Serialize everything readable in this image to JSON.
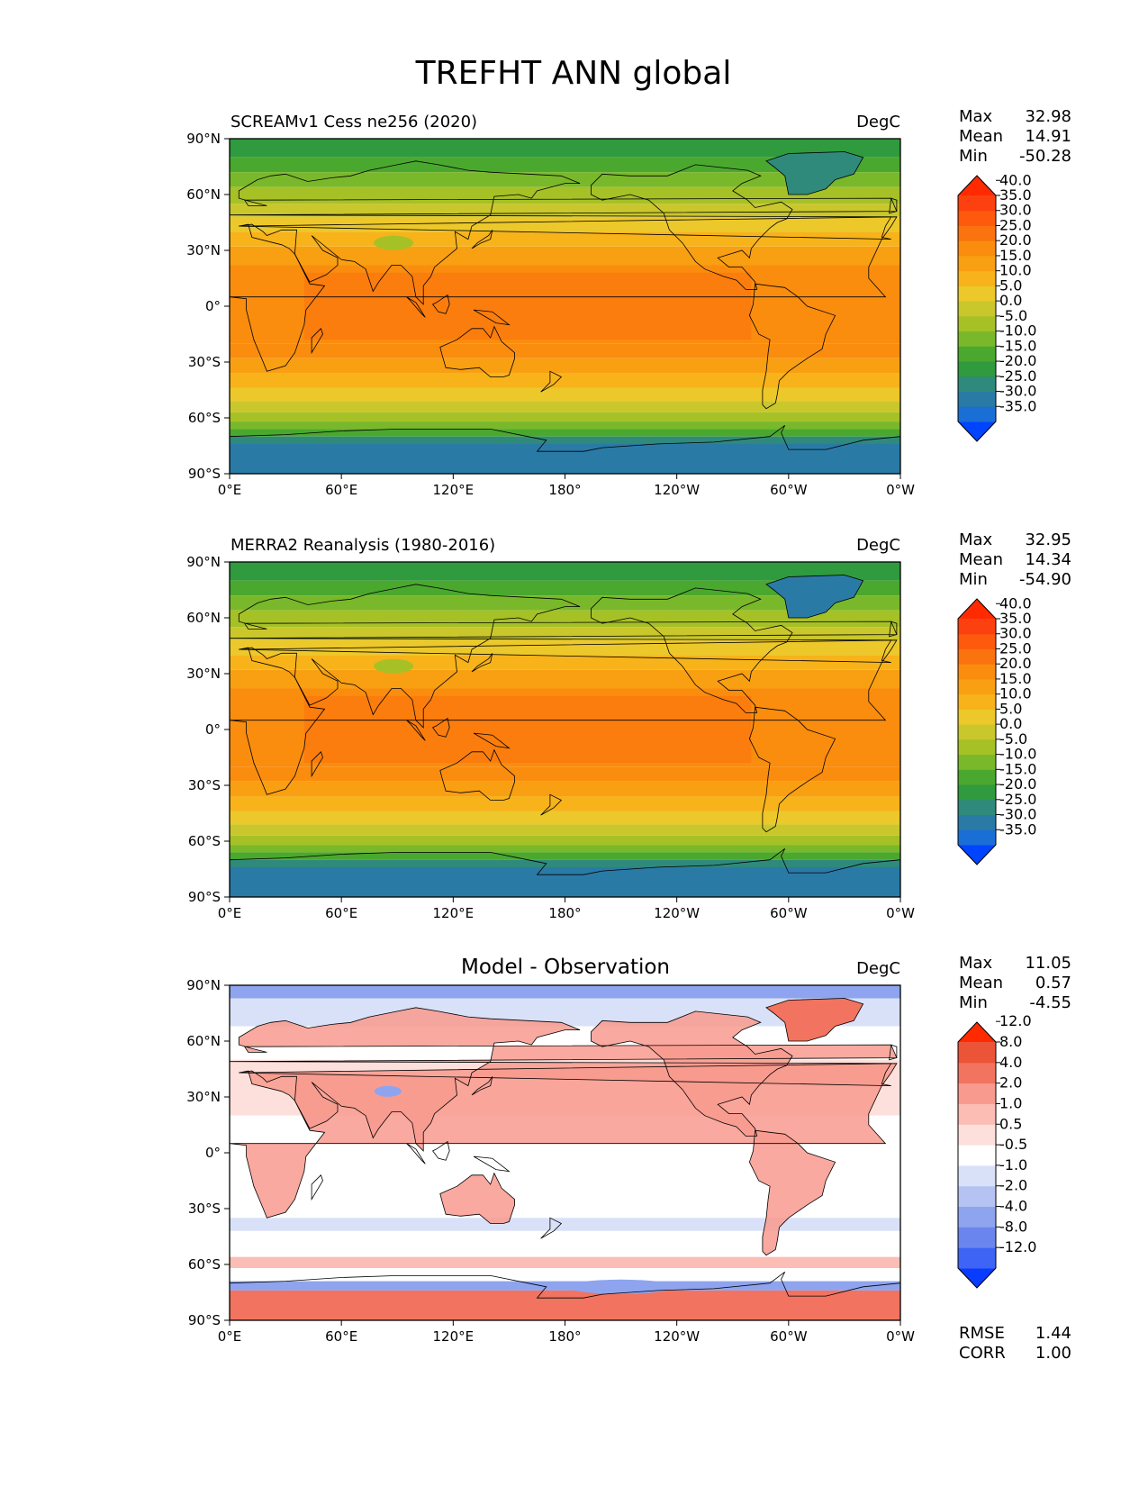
{
  "figure": {
    "title": "TREFHT ANN global"
  },
  "chart_data": [
    {
      "type": "heatmap",
      "title": "SCREAMv1 Cess ne256 (2020)",
      "units": "DegC",
      "stats": [
        {
          "label": "Max",
          "value": "32.98"
        },
        {
          "label": "Mean",
          "value": "14.91"
        },
        {
          "label": "Min",
          "value": "-50.28"
        }
      ],
      "colorbar_levels": [
        "-35.0",
        "-30.0",
        "-25.0",
        "-20.0",
        "-15.0",
        "-10.0",
        "-5.0",
        "0.0",
        "5.0",
        "10.0",
        "15.0",
        "20.0",
        "25.0",
        "30.0",
        "35.0",
        "40.0"
      ],
      "colorbar_colors": [
        "#0044ff",
        "#1a6fd6",
        "#2a7aa6",
        "#2f8a7c",
        "#2f9a3e",
        "#4aa82e",
        "#79b82a",
        "#a6c126",
        "#c9c72c",
        "#ecc82a",
        "#f7b319",
        "#f99f12",
        "#fa8d0e",
        "#fb730e",
        "#fd5a0d",
        "#fd4010",
        "#ff2a00"
      ],
      "xticks": [
        "0°E",
        "60°E",
        "120°E",
        "180°",
        "120°W",
        "60°W",
        "0°W"
      ],
      "yticks": [
        "90°N",
        "60°N",
        "30°N",
        "0°",
        "30°S",
        "60°S",
        "90°S"
      ],
      "field": "model"
    },
    {
      "type": "heatmap",
      "title": "MERRA2 Reanalysis (1980-2016)",
      "units": "DegC",
      "stats": [
        {
          "label": "Max",
          "value": "32.95"
        },
        {
          "label": "Mean",
          "value": "14.34"
        },
        {
          "label": "Min",
          "value": "-54.90"
        }
      ],
      "colorbar_levels": [
        "-35.0",
        "-30.0",
        "-25.0",
        "-20.0",
        "-15.0",
        "-10.0",
        "-5.0",
        "0.0",
        "5.0",
        "10.0",
        "15.0",
        "20.0",
        "25.0",
        "30.0",
        "35.0",
        "40.0"
      ],
      "colorbar_colors": [
        "#0044ff",
        "#1a6fd6",
        "#2a7aa6",
        "#2f8a7c",
        "#2f9a3e",
        "#4aa82e",
        "#79b82a",
        "#a6c126",
        "#c9c72c",
        "#ecc82a",
        "#f7b319",
        "#f99f12",
        "#fa8d0e",
        "#fb730e",
        "#fd5a0d",
        "#fd4010",
        "#ff2a00"
      ],
      "xticks": [
        "0°E",
        "60°E",
        "120°E",
        "180°",
        "120°W",
        "60°W",
        "0°W"
      ],
      "yticks": [
        "90°N",
        "60°N",
        "30°N",
        "0°",
        "30°S",
        "60°S",
        "90°S"
      ],
      "field": "obs"
    },
    {
      "type": "heatmap",
      "title": "Model - Observation",
      "units": "DegC",
      "stats": [
        {
          "label": "Max",
          "value": "11.05"
        },
        {
          "label": "Mean",
          "value": "0.57"
        },
        {
          "label": "Min",
          "value": "-4.55"
        }
      ],
      "extra_stats": [
        {
          "label": "RMSE",
          "value": "1.44"
        },
        {
          "label": "CORR",
          "value": "1.00"
        }
      ],
      "colorbar_levels": [
        "-12.0",
        "-8.0",
        "-4.0",
        "-2.0",
        "-1.0",
        "-0.5",
        "0.5",
        "1.0",
        "2.0",
        "4.0",
        "8.0",
        "12.0"
      ],
      "colorbar_colors": [
        "#0a3cff",
        "#3d64f5",
        "#6a86ee",
        "#8ea4ef",
        "#b5c3f3",
        "#d9e1f9",
        "#ffffff",
        "#fde0dc",
        "#fbbdb4",
        "#f89a8e",
        "#f2735f",
        "#ec5438",
        "#ff2a00"
      ],
      "xticks": [
        "0°E",
        "60°E",
        "120°E",
        "180°",
        "120°W",
        "60°W",
        "0°W"
      ],
      "yticks": [
        "90°N",
        "60°N",
        "30°N",
        "0°",
        "30°S",
        "60°S",
        "90°S"
      ],
      "field": "diff"
    }
  ]
}
